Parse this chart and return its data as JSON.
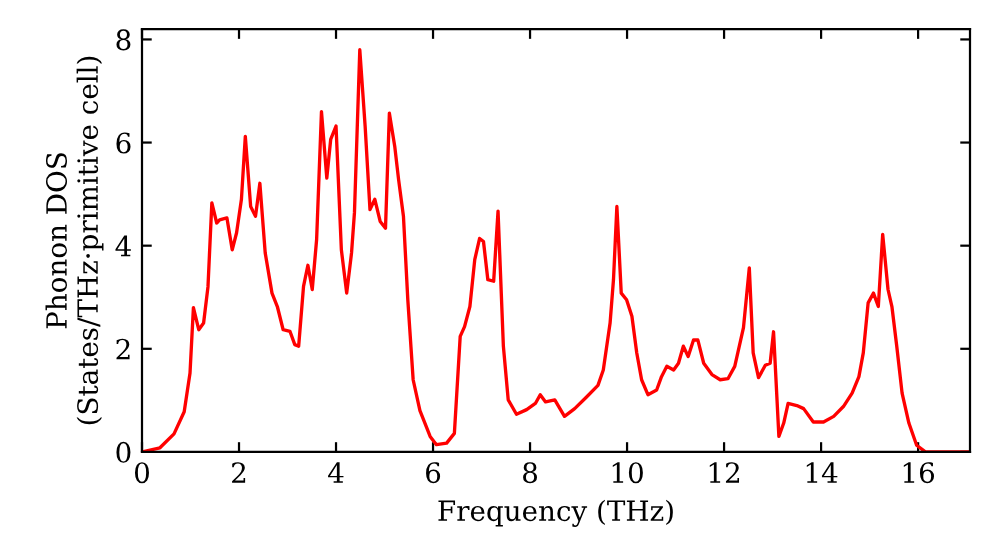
{
  "chart_data": {
    "type": "line",
    "xlabel": "Frequency (THz)",
    "ylabel": "Phonon DOS\n(States/THz·primitive cell)",
    "xlim": [
      0,
      17.07
    ],
    "ylim": [
      0,
      8.2
    ],
    "xticks": [
      0,
      2,
      4,
      6,
      8,
      10,
      12,
      14,
      16
    ],
    "yticks": [
      0,
      2,
      4,
      6,
      8
    ],
    "grid": false,
    "legend": false,
    "marker": "none",
    "line_style": "solid",
    "series": [
      {
        "color": "#ff0000",
        "x": [
          0,
          0.37,
          0.66,
          0.87,
          0.99,
          1.06,
          1.17,
          1.27,
          1.36,
          1.44,
          1.54,
          1.6,
          1.75,
          1.86,
          1.95,
          2.05,
          2.13,
          2.24,
          2.34,
          2.43,
          2.54,
          2.68,
          2.79,
          2.91,
          3.05,
          3.15,
          3.23,
          3.33,
          3.42,
          3.51,
          3.6,
          3.7,
          3.81,
          3.89,
          4.0,
          4.11,
          4.22,
          4.32,
          4.38,
          4.49,
          4.6,
          4.7,
          4.8,
          4.91,
          5.02,
          5.1,
          5.21,
          5.29,
          5.39,
          5.48,
          5.59,
          5.73,
          5.94,
          6.07,
          6.28,
          6.44,
          6.56,
          6.65,
          6.76,
          6.86,
          6.96,
          7.04,
          7.13,
          7.25,
          7.34,
          7.45,
          7.55,
          7.72,
          7.93,
          8.11,
          8.21,
          8.32,
          8.51,
          8.71,
          8.92,
          9.17,
          9.4,
          9.51,
          9.65,
          9.72,
          9.79,
          9.88,
          9.99,
          10.1,
          10.2,
          10.3,
          10.43,
          10.61,
          10.71,
          10.82,
          10.96,
          11.06,
          11.16,
          11.26,
          11.37,
          11.46,
          11.58,
          11.75,
          11.92,
          12.08,
          12.22,
          12.4,
          12.52,
          12.6,
          12.71,
          12.85,
          12.95,
          13.02,
          13.13,
          13.23,
          13.32,
          13.5,
          13.64,
          13.84,
          14.05,
          14.26,
          14.46,
          14.64,
          14.78,
          14.87,
          14.97,
          15.08,
          15.18,
          15.27,
          15.38,
          15.46,
          15.56,
          15.67,
          15.81,
          15.97,
          16.15,
          17.07
        ],
        "values": [
          0,
          0.08,
          0.35,
          0.78,
          1.53,
          2.8,
          2.37,
          2.5,
          3.2,
          4.83,
          4.44,
          4.5,
          4.54,
          3.92,
          4.25,
          4.9,
          6.12,
          4.76,
          4.57,
          5.21,
          3.86,
          3.08,
          2.82,
          2.37,
          2.34,
          2.08,
          2.05,
          3.21,
          3.62,
          3.15,
          4.12,
          6.6,
          5.31,
          6.06,
          6.32,
          3.92,
          3.08,
          3.86,
          4.64,
          7.8,
          6.32,
          4.7,
          4.9,
          4.47,
          4.34,
          6.57,
          5.93,
          5.28,
          4.57,
          2.95,
          1.4,
          0.8,
          0.3,
          0.14,
          0.17,
          0.36,
          2.24,
          2.43,
          2.82,
          3.73,
          4.14,
          4.08,
          3.34,
          3.31,
          4.67,
          2.05,
          1.01,
          0.73,
          0.82,
          0.94,
          1.11,
          0.97,
          1.01,
          0.69,
          0.84,
          1.07,
          1.29,
          1.59,
          2.5,
          3.34,
          4.76,
          3.08,
          2.95,
          2.63,
          1.92,
          1.4,
          1.11,
          1.2,
          1.46,
          1.66,
          1.59,
          1.72,
          2.05,
          1.85,
          2.17,
          2.17,
          1.72,
          1.5,
          1.4,
          1.42,
          1.66,
          2.41,
          3.57,
          1.92,
          1.44,
          1.68,
          1.72,
          2.33,
          0.3,
          0.56,
          0.94,
          0.9,
          0.84,
          0.58,
          0.58,
          0.69,
          0.88,
          1.14,
          1.46,
          1.92,
          2.89,
          3.08,
          2.82,
          4.22,
          3.15,
          2.82,
          2.05,
          1.14,
          0.56,
          0.13,
          0,
          0
        ]
      }
    ]
  }
}
